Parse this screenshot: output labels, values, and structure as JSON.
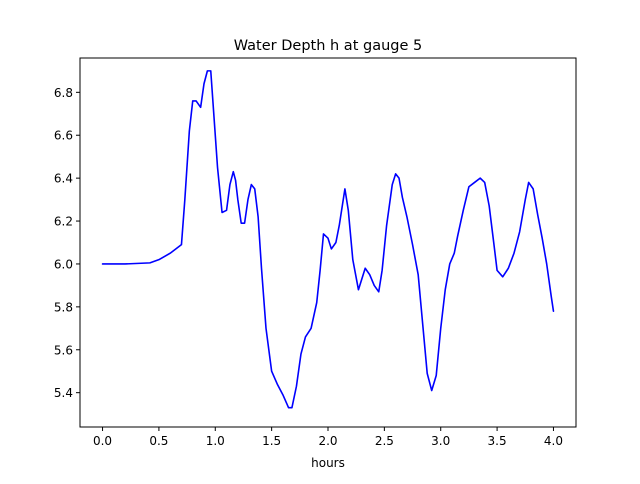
{
  "chart_data": {
    "type": "line",
    "title": "Water Depth h at gauge 5",
    "xlabel": "hours",
    "ylabel": "",
    "xlim": [
      -0.2,
      4.2
    ],
    "ylim": [
      5.24,
      6.96
    ],
    "xticks": [
      0.0,
      0.5,
      1.0,
      1.5,
      2.0,
      2.5,
      3.0,
      3.5,
      4.0
    ],
    "xtick_labels": [
      "0.0",
      "0.5",
      "1.0",
      "1.5",
      "2.0",
      "2.5",
      "3.0",
      "3.5",
      "4.0"
    ],
    "yticks": [
      5.4,
      5.6,
      5.8,
      6.0,
      6.2,
      6.4,
      6.6,
      6.8
    ],
    "ytick_labels": [
      "5.4",
      "5.6",
      "5.8",
      "6.0",
      "6.2",
      "6.4",
      "6.6",
      "6.8"
    ],
    "grid": false,
    "legend": "none",
    "series": [
      {
        "color": "#0000ff",
        "x": [
          0.0,
          0.2,
          0.42,
          0.5,
          0.6,
          0.7,
          0.73,
          0.77,
          0.8,
          0.83,
          0.87,
          0.9,
          0.93,
          0.96,
          0.98,
          1.02,
          1.06,
          1.1,
          1.13,
          1.16,
          1.18,
          1.2,
          1.23,
          1.26,
          1.29,
          1.32,
          1.35,
          1.38,
          1.41,
          1.45,
          1.5,
          1.55,
          1.6,
          1.65,
          1.68,
          1.72,
          1.76,
          1.8,
          1.85,
          1.9,
          1.93,
          1.96,
          2.0,
          2.03,
          2.07,
          2.1,
          2.15,
          2.18,
          2.22,
          2.27,
          2.3,
          2.33,
          2.37,
          2.41,
          2.45,
          2.48,
          2.52,
          2.57,
          2.6,
          2.63,
          2.66,
          2.7,
          2.75,
          2.8,
          2.84,
          2.88,
          2.92,
          2.96,
          3.0,
          3.04,
          3.08,
          3.12,
          3.15,
          3.2,
          3.25,
          3.3,
          3.35,
          3.39,
          3.43,
          3.47,
          3.5,
          3.55,
          3.6,
          3.65,
          3.7,
          3.75,
          3.78,
          3.82,
          3.86,
          3.9,
          3.94,
          3.98,
          4.0
        ],
        "y": [
          6.0,
          6.0,
          6.005,
          6.02,
          6.05,
          6.09,
          6.3,
          6.62,
          6.76,
          6.76,
          6.73,
          6.84,
          6.9,
          6.9,
          6.75,
          6.45,
          6.24,
          6.25,
          6.37,
          6.43,
          6.39,
          6.3,
          6.19,
          6.19,
          6.3,
          6.37,
          6.35,
          6.22,
          5.98,
          5.7,
          5.5,
          5.44,
          5.39,
          5.33,
          5.33,
          5.43,
          5.58,
          5.66,
          5.7,
          5.82,
          5.97,
          6.14,
          6.12,
          6.07,
          6.1,
          6.18,
          6.35,
          6.25,
          6.02,
          5.88,
          5.93,
          5.98,
          5.95,
          5.9,
          5.87,
          5.97,
          6.18,
          6.37,
          6.42,
          6.4,
          6.31,
          6.22,
          6.09,
          5.95,
          5.72,
          5.49,
          5.41,
          5.48,
          5.7,
          5.88,
          6.0,
          6.05,
          6.13,
          6.25,
          6.36,
          6.38,
          6.4,
          6.38,
          6.27,
          6.1,
          5.97,
          5.94,
          5.98,
          6.05,
          6.15,
          6.3,
          6.38,
          6.35,
          6.23,
          6.12,
          6.0,
          5.85,
          5.78
        ]
      }
    ]
  }
}
